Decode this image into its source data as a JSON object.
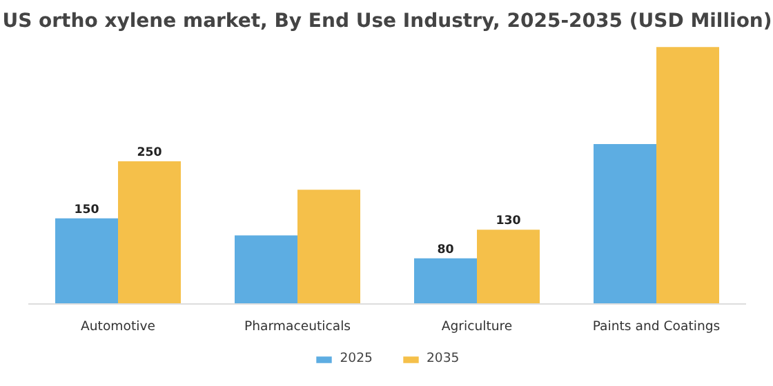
{
  "chart_data": {
    "type": "bar",
    "title": "US ortho xylene market, By End Use Industry, 2025-2035 (USD Million)",
    "categories": [
      "Automotive",
      "Pharmaceuticals",
      "Agriculture",
      "Paints and Coatings"
    ],
    "series": [
      {
        "name": "2025",
        "color": "#5dade2",
        "values": [
          150,
          120,
          80,
          280
        ],
        "value_labels": [
          "150",
          null,
          "80",
          null
        ]
      },
      {
        "name": "2035",
        "color": "#f5c04a",
        "values": [
          250,
          200,
          130,
          450
        ],
        "value_labels": [
          "250",
          null,
          "130",
          null
        ]
      }
    ],
    "legend": "bottom"
  }
}
